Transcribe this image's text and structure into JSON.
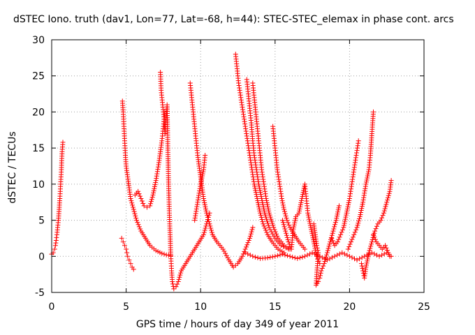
{
  "chart_data": {
    "type": "scatter",
    "title": "dSTEC Iono. truth (dav1, Lon=77, Lat=-68, h=44): STEC-STEC_elemax in phase cont. arcs",
    "xlabel": "GPS time / hours of day 349 of year 2011",
    "ylabel": "dSTEC  / TECUs",
    "xlim": [
      0,
      25
    ],
    "ylim": [
      -5,
      30
    ],
    "xticks": [
      0,
      5,
      10,
      15,
      20,
      25
    ],
    "yticks": [
      -5,
      0,
      5,
      10,
      15,
      20,
      25,
      30
    ],
    "grid": true,
    "marker": "+",
    "color": "#ff0000",
    "series": [
      {
        "values": [
          [
            0.0,
            0.3
          ],
          [
            0.1,
            0.5
          ],
          [
            0.2,
            1.0
          ],
          [
            0.25,
            1.5
          ],
          [
            0.3,
            2.2
          ],
          [
            0.35,
            3.0
          ],
          [
            0.4,
            4.0
          ],
          [
            0.45,
            5.0
          ],
          [
            0.5,
            6.5
          ],
          [
            0.55,
            8.0
          ],
          [
            0.6,
            10.0
          ],
          [
            0.65,
            12.0
          ],
          [
            0.7,
            14.5
          ],
          [
            0.75,
            15.8
          ]
        ]
      },
      {
        "values": [
          [
            4.7,
            2.5
          ],
          [
            4.8,
            2.0
          ],
          [
            4.9,
            1.5
          ],
          [
            5.0,
            1.0
          ],
          [
            5.05,
            0.5
          ],
          [
            5.1,
            0.0
          ],
          [
            5.2,
            -0.5
          ],
          [
            5.3,
            -1.0
          ],
          [
            5.4,
            -1.5
          ],
          [
            5.5,
            -1.8
          ]
        ]
      },
      {
        "values": [
          [
            4.75,
            21.5
          ],
          [
            4.8,
            20.0
          ],
          [
            4.85,
            18.0
          ],
          [
            4.9,
            16.0
          ],
          [
            4.95,
            14.0
          ],
          [
            5.0,
            12.5
          ],
          [
            5.1,
            11.0
          ],
          [
            5.2,
            9.5
          ],
          [
            5.3,
            8.0
          ],
          [
            5.5,
            6.5
          ],
          [
            5.7,
            5.0
          ],
          [
            6.0,
            3.5
          ],
          [
            6.3,
            2.5
          ],
          [
            6.6,
            1.5
          ],
          [
            7.0,
            0.8
          ],
          [
            7.4,
            0.4
          ],
          [
            7.7,
            0.2
          ],
          [
            8.0,
            0.1
          ]
        ]
      },
      {
        "values": [
          [
            5.6,
            8.5
          ],
          [
            5.8,
            9.0
          ],
          [
            6.0,
            8.0
          ],
          [
            6.2,
            7.0
          ],
          [
            6.4,
            6.8
          ],
          [
            6.6,
            7.0
          ],
          [
            6.8,
            8.5
          ],
          [
            7.0,
            10.5
          ],
          [
            7.2,
            13.0
          ],
          [
            7.4,
            16.0
          ],
          [
            7.5,
            18.0
          ],
          [
            7.6,
            20.0
          ]
        ]
      },
      {
        "values": [
          [
            7.3,
            25.5
          ],
          [
            7.35,
            23.0
          ],
          [
            7.45,
            21.0
          ],
          [
            7.55,
            19.0
          ],
          [
            7.6,
            17.0
          ],
          [
            7.7,
            19.5
          ],
          [
            7.75,
            21.0
          ],
          [
            7.8,
            15.0
          ],
          [
            7.85,
            10.0
          ],
          [
            7.9,
            6.0
          ],
          [
            7.95,
            3.0
          ],
          [
            8.0,
            0.0
          ],
          [
            8.05,
            -2.0
          ],
          [
            8.1,
            -3.5
          ],
          [
            8.2,
            -4.5
          ],
          [
            8.35,
            -4.2
          ],
          [
            8.5,
            -3.5
          ],
          [
            8.7,
            -2.0
          ],
          [
            9.0,
            -1.0
          ],
          [
            9.3,
            0.0
          ],
          [
            9.6,
            1.0
          ],
          [
            9.9,
            2.0
          ],
          [
            10.2,
            3.0
          ],
          [
            10.4,
            4.5
          ],
          [
            10.6,
            6.0
          ]
        ]
      },
      {
        "values": [
          [
            9.3,
            24.0
          ],
          [
            9.4,
            22.0
          ],
          [
            9.5,
            20.0
          ],
          [
            9.6,
            18.0
          ],
          [
            9.7,
            16.0
          ],
          [
            9.8,
            14.0
          ],
          [
            9.9,
            12.5
          ],
          [
            10.0,
            11.0
          ],
          [
            10.1,
            9.5
          ],
          [
            10.2,
            8.0
          ],
          [
            10.4,
            6.0
          ],
          [
            10.6,
            4.5
          ],
          [
            10.8,
            3.0
          ],
          [
            11.1,
            2.0
          ],
          [
            11.5,
            1.0
          ],
          [
            11.9,
            -0.5
          ],
          [
            12.2,
            -1.5
          ],
          [
            12.5,
            -1.0
          ],
          [
            12.8,
            0.0
          ],
          [
            13.0,
            1.0
          ],
          [
            13.3,
            2.5
          ],
          [
            13.5,
            4.0
          ]
        ]
      },
      {
        "values": [
          [
            9.6,
            5.0
          ],
          [
            9.8,
            7.5
          ],
          [
            10.0,
            10.0
          ],
          [
            10.2,
            12.0
          ],
          [
            10.3,
            14.0
          ]
        ]
      },
      {
        "values": [
          [
            12.35,
            28.0
          ],
          [
            12.45,
            26.0
          ],
          [
            12.55,
            24.0
          ],
          [
            12.7,
            22.0
          ],
          [
            12.85,
            20.0
          ],
          [
            13.0,
            18.0
          ],
          [
            13.15,
            16.0
          ],
          [
            13.3,
            14.0
          ],
          [
            13.45,
            12.0
          ],
          [
            13.6,
            10.0
          ],
          [
            13.8,
            8.0
          ],
          [
            14.0,
            6.0
          ],
          [
            14.2,
            4.5
          ],
          [
            14.5,
            3.0
          ],
          [
            14.8,
            2.0
          ],
          [
            15.2,
            1.0
          ],
          [
            15.6,
            0.5
          ]
        ]
      },
      {
        "values": [
          [
            13.1,
            24.5
          ],
          [
            13.2,
            22.5
          ],
          [
            13.3,
            20.5
          ],
          [
            13.4,
            18.5
          ],
          [
            13.5,
            16.0
          ],
          [
            13.6,
            14.0
          ],
          [
            13.75,
            12.0
          ],
          [
            13.9,
            10.0
          ],
          [
            14.1,
            8.0
          ],
          [
            14.3,
            6.0
          ],
          [
            14.6,
            4.0
          ],
          [
            15.0,
            2.5
          ],
          [
            15.4,
            1.5
          ],
          [
            15.9,
            1.0
          ]
        ]
      },
      {
        "values": [
          [
            13.5,
            24.0
          ],
          [
            13.6,
            22.0
          ],
          [
            13.7,
            20.0
          ],
          [
            13.8,
            18.0
          ],
          [
            13.9,
            16.0
          ],
          [
            14.0,
            14.0
          ],
          [
            14.1,
            12.0
          ],
          [
            14.25,
            10.0
          ],
          [
            14.4,
            8.0
          ],
          [
            14.6,
            6.0
          ],
          [
            14.9,
            4.0
          ],
          [
            15.2,
            2.5
          ],
          [
            15.6,
            1.5
          ],
          [
            16.0,
            1.0
          ]
        ]
      },
      {
        "values": [
          [
            14.85,
            18.0
          ],
          [
            14.95,
            16.0
          ],
          [
            15.05,
            14.0
          ],
          [
            15.15,
            12.0
          ],
          [
            15.3,
            10.0
          ],
          [
            15.45,
            8.0
          ],
          [
            15.6,
            6.5
          ],
          [
            15.8,
            5.0
          ],
          [
            16.0,
            4.0
          ],
          [
            16.3,
            3.0
          ],
          [
            16.6,
            2.0
          ],
          [
            17.0,
            1.0
          ]
        ]
      },
      {
        "values": [
          [
            13.0,
            0.5
          ],
          [
            13.5,
            0.0
          ],
          [
            14.0,
            -0.3
          ],
          [
            14.5,
            -0.2
          ],
          [
            15.0,
            0.0
          ],
          [
            15.5,
            0.3
          ],
          [
            16.0,
            0.0
          ],
          [
            16.5,
            -0.3
          ],
          [
            17.0,
            0.0
          ],
          [
            17.5,
            0.5
          ],
          [
            18.0,
            0.0
          ],
          [
            18.5,
            -0.5
          ],
          [
            19.0,
            0.0
          ],
          [
            19.5,
            0.5
          ],
          [
            20.0,
            0.0
          ],
          [
            20.5,
            -0.5
          ],
          [
            21.0,
            0.0
          ],
          [
            21.5,
            0.5
          ],
          [
            22.0,
            0.0
          ],
          [
            22.5,
            0.5
          ],
          [
            22.8,
            0.0
          ]
        ]
      },
      {
        "values": [
          [
            15.5,
            5.0
          ],
          [
            15.7,
            3.5
          ],
          [
            15.9,
            2.0
          ],
          [
            16.1,
            1.0
          ],
          [
            16.2,
            3.5
          ],
          [
            16.4,
            5.5
          ],
          [
            16.6,
            6.0
          ],
          [
            16.8,
            8.0
          ],
          [
            17.0,
            10.0
          ],
          [
            17.1,
            8.0
          ],
          [
            17.2,
            6.0
          ],
          [
            17.4,
            4.0
          ],
          [
            17.6,
            2.0
          ],
          [
            17.8,
            0.0
          ],
          [
            18.0,
            -1.0
          ]
        ]
      },
      {
        "values": [
          [
            17.6,
            4.5
          ],
          [
            17.7,
            3.0
          ],
          [
            17.8,
            1.5
          ],
          [
            17.9,
            0.5
          ],
          [
            17.75,
            -4.0
          ],
          [
            17.9,
            -3.5
          ],
          [
            18.0,
            -3.0
          ],
          [
            18.1,
            -2.0
          ],
          [
            18.3,
            -1.0
          ],
          [
            18.5,
            0.5
          ],
          [
            18.7,
            2.0
          ],
          [
            18.9,
            3.5
          ],
          [
            19.1,
            5.0
          ],
          [
            19.3,
            7.0
          ]
        ]
      },
      {
        "values": [
          [
            18.8,
            2.5
          ],
          [
            19.0,
            1.5
          ],
          [
            19.2,
            2.0
          ],
          [
            19.4,
            3.0
          ],
          [
            19.6,
            4.0
          ],
          [
            19.8,
            6.0
          ],
          [
            20.0,
            8.0
          ],
          [
            20.15,
            10.0
          ],
          [
            20.3,
            12.0
          ],
          [
            20.45,
            14.0
          ],
          [
            20.6,
            16.0
          ]
        ]
      },
      {
        "values": [
          [
            19.9,
            1.0
          ],
          [
            20.1,
            2.0
          ],
          [
            20.3,
            3.0
          ],
          [
            20.5,
            4.0
          ],
          [
            20.7,
            5.5
          ],
          [
            20.9,
            7.5
          ],
          [
            21.1,
            10.0
          ],
          [
            21.3,
            12.0
          ],
          [
            21.4,
            14.0
          ],
          [
            21.5,
            17.0
          ],
          [
            21.6,
            20.0
          ]
        ]
      },
      {
        "values": [
          [
            20.8,
            -1.0
          ],
          [
            20.9,
            -2.0
          ],
          [
            21.0,
            -3.0
          ],
          [
            21.1,
            -1.5
          ],
          [
            21.3,
            0.5
          ],
          [
            21.5,
            2.0
          ],
          [
            21.7,
            3.5
          ],
          [
            21.9,
            4.5
          ],
          [
            22.1,
            5.0
          ],
          [
            22.3,
            6.0
          ],
          [
            22.5,
            7.5
          ],
          [
            22.7,
            9.0
          ],
          [
            22.8,
            10.5
          ]
        ]
      },
      {
        "values": [
          [
            21.6,
            3.0
          ],
          [
            21.8,
            2.0
          ],
          [
            22.0,
            1.5
          ],
          [
            22.2,
            1.0
          ],
          [
            22.4,
            1.5
          ],
          [
            22.6,
            0.5
          ],
          [
            22.7,
            0.0
          ]
        ]
      }
    ]
  }
}
